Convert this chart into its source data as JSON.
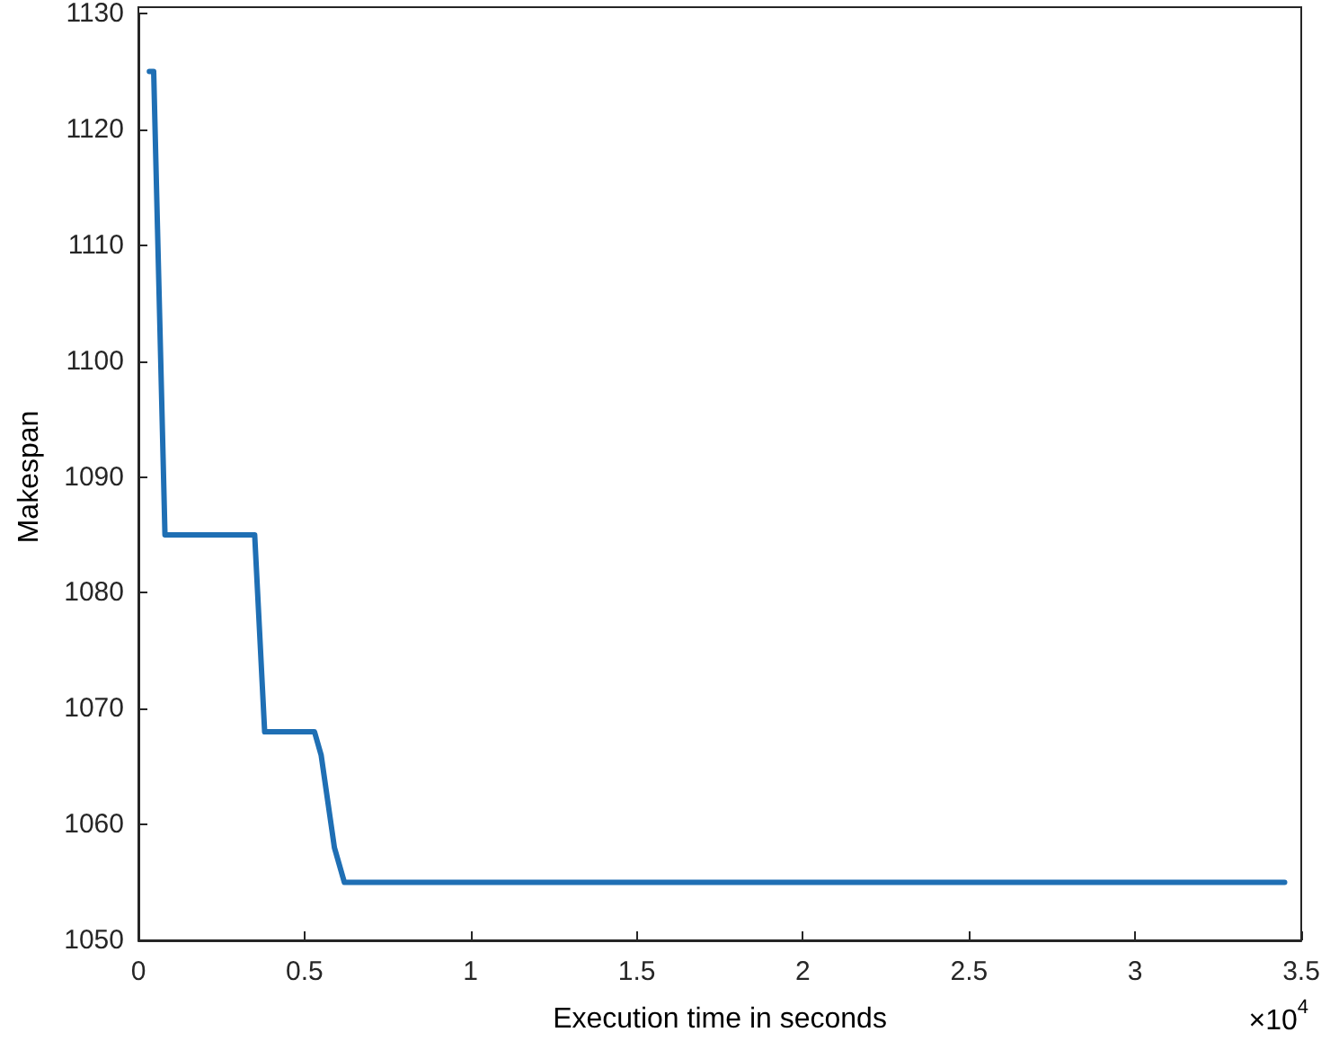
{
  "chart_data": {
    "type": "line",
    "xlabel": "Execution time in seconds",
    "ylabel": "Makespan",
    "annotations": [
      "×10$^{4}$"
    ],
    "xlim": [
      0,
      3.5
    ],
    "xticks": [
      0,
      0.5,
      1,
      1.5,
      2,
      2.5,
      3,
      3.5
    ],
    "ylim": [
      1050,
      1130
    ],
    "yticks": [
      1050,
      1060,
      1070,
      1080,
      1090,
      1100,
      1110,
      1120,
      1130
    ],
    "grid": false,
    "marker": "none",
    "line_style": "solid",
    "series": [
      {
        "color": "#1f6fb4",
        "x": [
          0.033,
          0.046,
          0.08,
          0.35,
          0.38,
          0.53,
          0.55,
          0.57,
          0.59,
          0.62,
          3.45
        ],
        "values": [
          1125,
          1125,
          1085,
          1085,
          1068,
          1068,
          1066,
          1062,
          1058,
          1055,
          1055
        ]
      }
    ]
  }
}
